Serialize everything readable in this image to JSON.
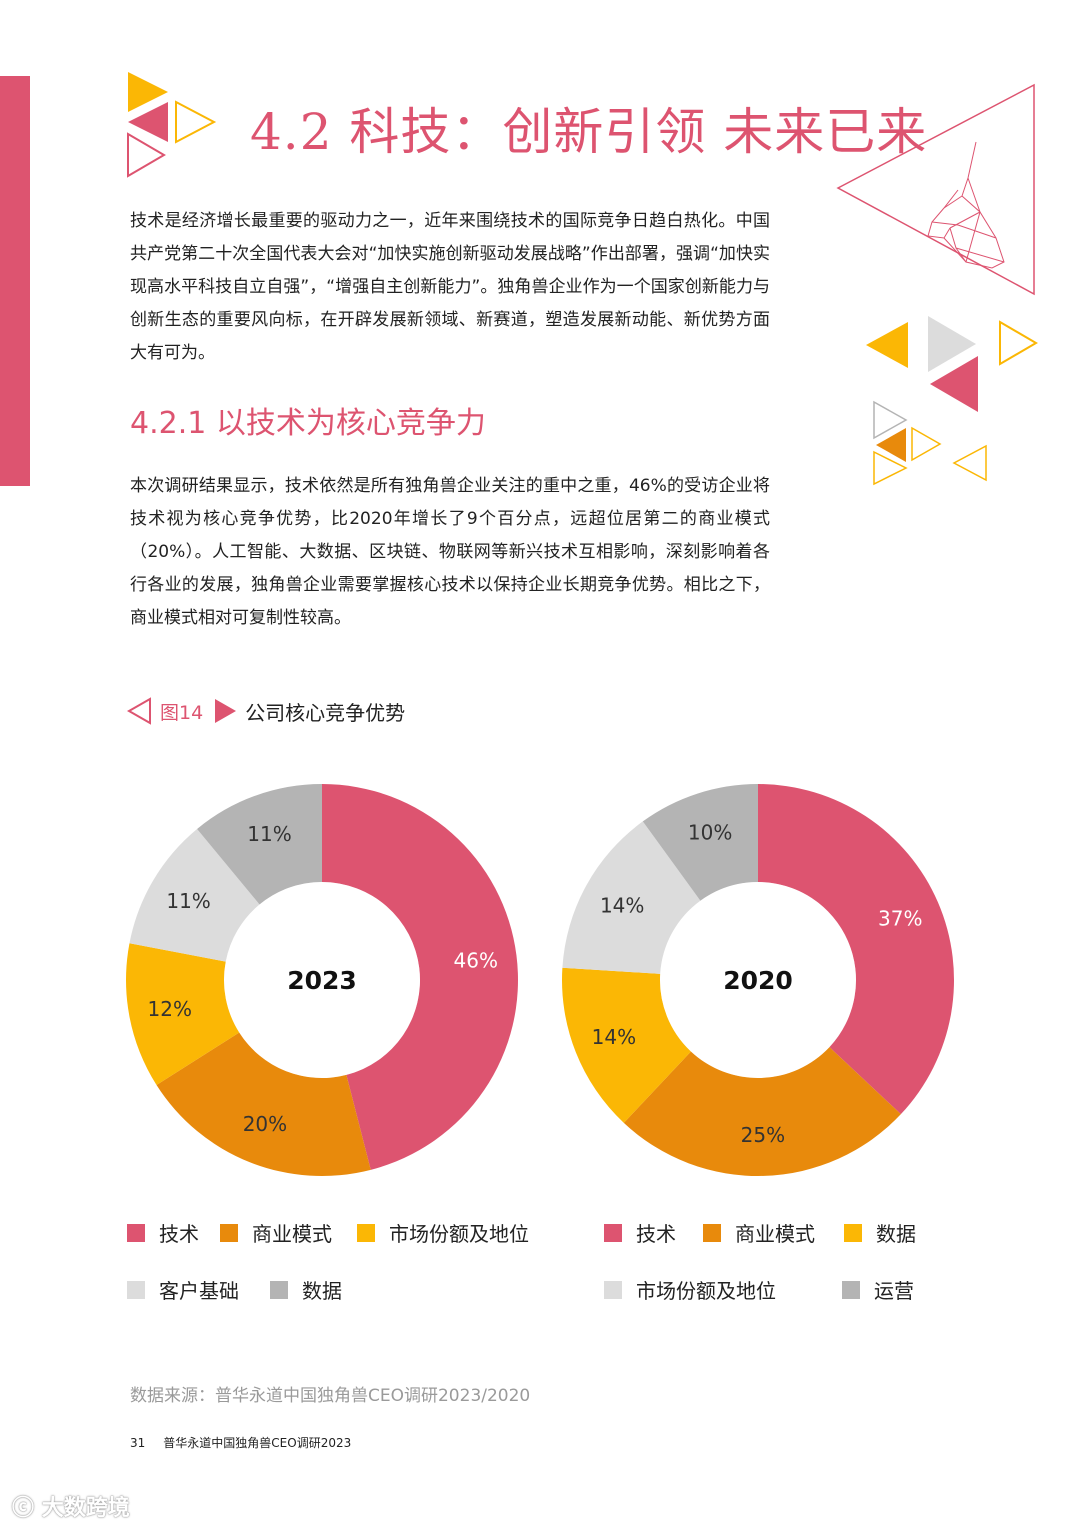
{
  "header": {
    "title": "4.2 科技：创新引领 未来已来"
  },
  "intro": {
    "paragraph": "技术是经济增长最重要的驱动力之一，近年来围绕技术的国际竞争日趋白热化。中国共产党第二十次全国代表大会对“加快实施创新驱动发展战略”作出部署，强调“加快实现高水平科技自立自强”，“增强自主创新能力”。独角兽企业作为一个国家创新能力与创新生态的重要风向标，在开辟发展新领域、新赛道，塑造发展新动能、新优势方面大有可为。"
  },
  "section": {
    "heading": "4.2.1 以技术为核心竞争力",
    "paragraph": "本次调研结果显示，技术依然是所有独角兽企业关注的重中之重，46%的受访企业将技术视为核心竞争优势，比2020年增长了9个百分点，远超位居第二的商业模式（20%）。人工智能、大数据、区块链、物联网等新兴技术互相影响，深刻影响着各行各业的发展，独角兽企业需要掌握核心技术以保持企业长期竞争优势。相比之下，商业模式相对可复制性较高。"
  },
  "figure": {
    "number": "图14",
    "title": "公司核心竞争优势"
  },
  "chart_data": [
    {
      "type": "donut",
      "center_label": "2023",
      "categories": [
        "技术",
        "商业模式",
        "市场份额及地位",
        "客户基础",
        "数据"
      ],
      "values": [
        46,
        20,
        12,
        11,
        11
      ],
      "labels": [
        "46%",
        "20%",
        "12%",
        "11%",
        "11%"
      ],
      "colors": [
        "#dd5470",
        "#e88a0c",
        "#fbb705",
        "#dcdcdc",
        "#b4b4b4"
      ],
      "legend": [
        "技术",
        "商业模式",
        "市场份额及地位",
        "客户基础",
        "数据"
      ]
    },
    {
      "type": "donut",
      "center_label": "2020",
      "categories": [
        "技术",
        "商业模式",
        "数据",
        "市场份额及地位",
        "运营"
      ],
      "values": [
        37,
        25,
        14,
        14,
        10
      ],
      "labels": [
        "37%",
        "25%",
        "14%",
        "14%",
        "10%"
      ],
      "colors": [
        "#dd5470",
        "#e88a0c",
        "#fbb705",
        "#dcdcdc",
        "#b4b4b4"
      ],
      "legend": [
        "技术",
        "商业模式",
        "数据",
        "市场份额及地位",
        "运营"
      ]
    }
  ],
  "source": "数据来源：普华永道中国独角兽CEO调研2023/2020",
  "footer": {
    "page_number": "31",
    "text": "普华永道中国独角兽CEO调研2023"
  },
  "watermark": "大数跨境"
}
